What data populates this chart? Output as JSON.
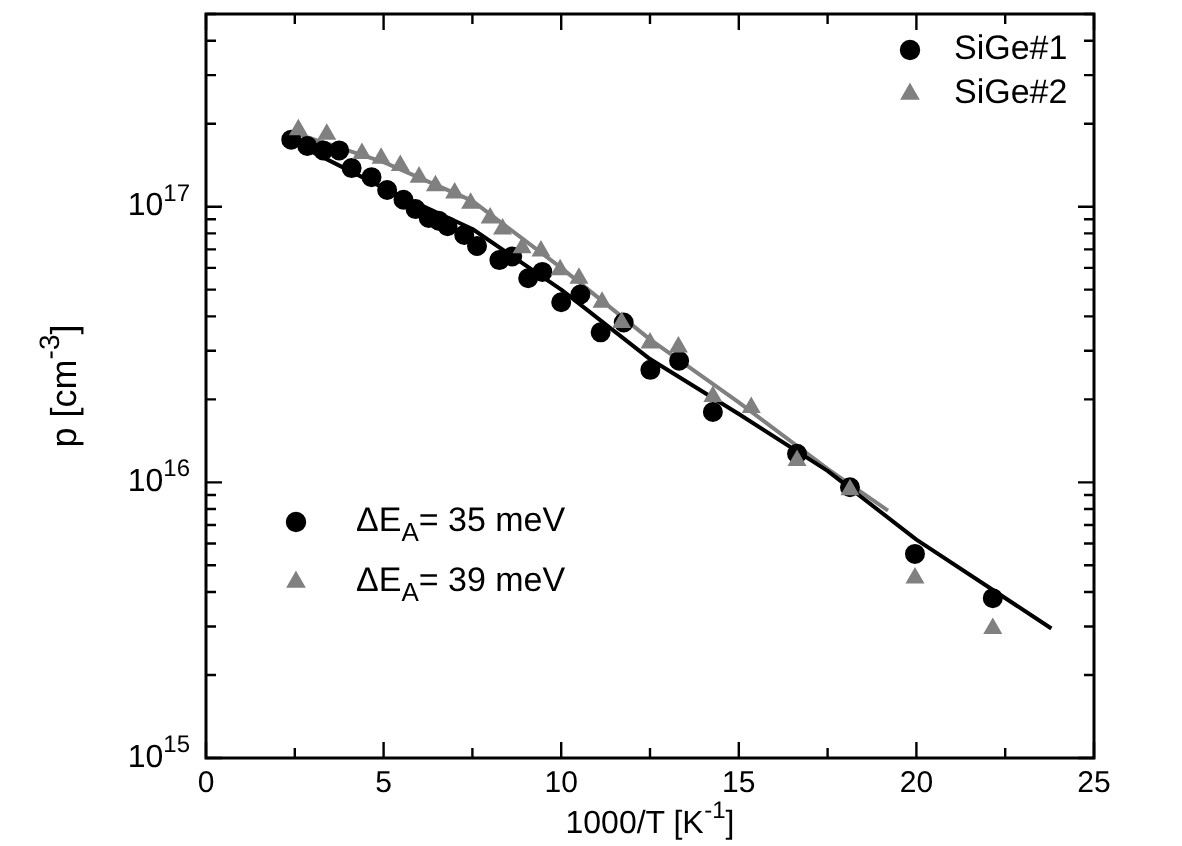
{
  "chart_data": {
    "type": "scatter",
    "xlabel": "1000/T [K$^{-1}$]",
    "ylabel": "p [cm$^{-3}$]",
    "xlim": [
      0,
      25
    ],
    "xticks": [
      0,
      {
        "value": 2.5,
        "label": null
      },
      5,
      {
        "value": 7.5,
        "label": null
      },
      10,
      {
        "value": 12.5,
        "label": null
      },
      15,
      {
        "value": 17.5,
        "label": null
      },
      20,
      {
        "value": 22.5,
        "label": null
      },
      25
    ],
    "ylim": [
      1000000000000000.0,
      5e+17
    ],
    "yticks": [
      {
        "value": 1000000000000000.0,
        "label": "10$^{15}$"
      },
      {
        "value": 2000000000000000.0,
        "label": null
      },
      {
        "value": 3000000000000000.0,
        "label": null
      },
      {
        "value": 4000000000000000.0,
        "label": null
      },
      {
        "value": 5000000000000000.0,
        "label": null
      },
      {
        "value": 6000000000000000.0,
        "label": null
      },
      {
        "value": 7000000000000000.0,
        "label": null
      },
      {
        "value": 8000000000000000.0,
        "label": null
      },
      {
        "value": 9000000000000000.0,
        "label": null
      },
      {
        "value": 1e+16,
        "label": "10$^{16}$"
      },
      {
        "value": 2e+16,
        "label": null
      },
      {
        "value": 3e+16,
        "label": null
      },
      {
        "value": 4e+16,
        "label": null
      },
      {
        "value": 5e+16,
        "label": null
      },
      {
        "value": 6e+16,
        "label": null
      },
      {
        "value": 7e+16,
        "label": null
      },
      {
        "value": 8e+16,
        "label": null
      },
      {
        "value": 9e+16,
        "label": null
      },
      {
        "value": 1e+17,
        "label": "10$^{17}$"
      },
      {
        "value": 2e+17,
        "label": null
      },
      {
        "value": 3e+17,
        "label": null
      },
      {
        "value": 4e+17,
        "label": null
      },
      {
        "value": 5e+17,
        "label": null
      }
    ],
    "log": "y",
    "legend": "top right",
    "series": [
      {
        "name": "SiGe#1",
        "marker": "circle",
        "color": "#000000",
        "x": [
          2.4,
          2.85,
          3.3,
          3.75,
          4.1,
          4.66,
          5.1,
          5.56,
          5.9,
          6.27,
          6.55,
          6.8,
          7.27,
          7.63,
          8.26,
          8.62,
          9.07,
          9.47,
          10.0,
          10.54,
          11.11,
          11.76,
          12.51,
          13.32,
          14.27,
          16.64,
          18.13,
          19.96,
          22.15
        ],
        "values": [
          1.75e+17,
          1.66e+17,
          1.6e+17,
          1.6e+17,
          1.38e+17,
          1.28e+17,
          1.15e+17,
          1.06e+17,
          9.8e+16,
          9.1e+16,
          8.9e+16,
          8.5e+16,
          7.9e+16,
          7.2e+16,
          6.4e+16,
          6.6e+16,
          5.5e+16,
          5.8e+16,
          4.5e+16,
          4.8e+16,
          3.5e+16,
          3.8e+16,
          2.56e+16,
          2.76e+16,
          1.8e+16,
          1.27e+16,
          9600000000000000.0,
          5500000000000000.0,
          3800000000000000.0
        ]
      },
      {
        "name": "SiGe#2",
        "marker": "triangle",
        "color": "#808080",
        "x": [
          2.6,
          3.4,
          4.39,
          4.93,
          5.47,
          6.0,
          6.46,
          7.0,
          7.45,
          8.0,
          8.35,
          8.9,
          9.43,
          9.97,
          10.5,
          11.15,
          11.7,
          12.5,
          13.3,
          14.27,
          15.35,
          16.64,
          18.13,
          19.96,
          22.15
        ],
        "values": [
          1.9e+17,
          1.83e+17,
          1.56e+17,
          1.5e+17,
          1.41e+17,
          1.28e+17,
          1.19e+17,
          1.12e+17,
          1.03e+17,
          9.1e+16,
          8.3e+16,
          7.1e+16,
          6.9e+16,
          5.9e+16,
          5.5e+16,
          4.5e+16,
          3.8e+16,
          3.2e+16,
          3.1e+16,
          2.05e+16,
          1.87e+16,
          1.2e+16,
          9400000000000000.0,
          4500000000000000.0,
          2950000000000000.0
        ]
      },
      {
        "name": "ΔE$_{A}$= 35 meV",
        "type": "line",
        "color": "#000000",
        "x": [
          2.5,
          5,
          7.5,
          10,
          12.5,
          15,
          17.5,
          20,
          23.8
        ],
        "values": [
          1.7e+17,
          1.17e+17,
          8.3e+16,
          5e+16,
          2.8e+16,
          1.77e+16,
          1.1e+16,
          6200000000000000.0,
          2950000000000000.0
        ]
      },
      {
        "name": "ΔE$_{A}$= 39 meV",
        "type": "line",
        "color": "#808080",
        "x": [
          2.5,
          5,
          7.5,
          10,
          12.5,
          15,
          17.5,
          19.2
        ],
        "values": [
          1.85e+17,
          1.45e+17,
          1.05e+17,
          6e+16,
          3.3e+16,
          1.95e+16,
          1.12e+16,
          7900000000000000.0
        ]
      }
    ]
  }
}
